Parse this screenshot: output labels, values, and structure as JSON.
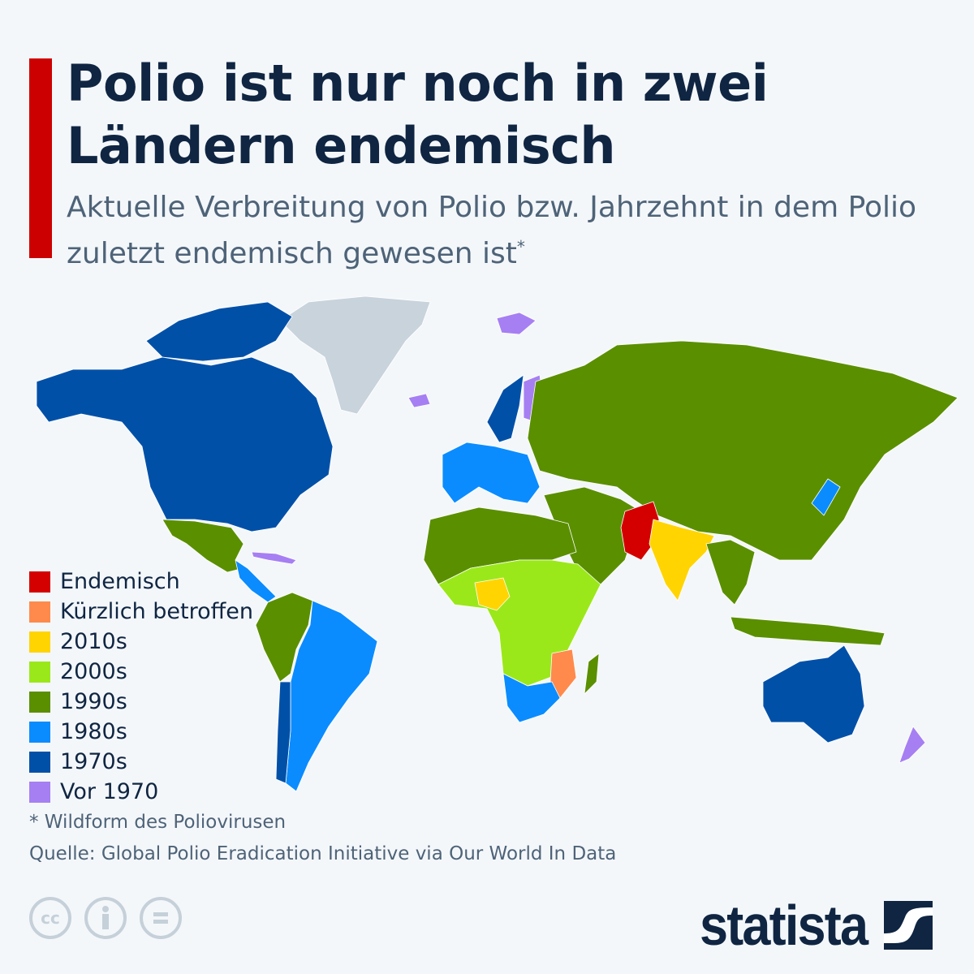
{
  "header": {
    "title": "Polio ist nur noch in zwei Ländern endemisch",
    "subtitle": "Aktuelle Verbreitung von Polio bzw. Jahrzehnt in dem Polio zuletzt endemisch gewesen ist",
    "subtitle_mark": "*",
    "accent_color": "#cc0000"
  },
  "legend": [
    {
      "label": "Endemisch",
      "color": "#d40000"
    },
    {
      "label": "Kürzlich betroffen",
      "color": "#ff8a4c"
    },
    {
      "label": "2010s",
      "color": "#ffd400"
    },
    {
      "label": "2000s",
      "color": "#9be81a"
    },
    {
      "label": "1990s",
      "color": "#5a8f00"
    },
    {
      "label": "1980s",
      "color": "#0a8cff"
    },
    {
      "label": "1970s",
      "color": "#0050a8"
    },
    {
      "label": "Vor 1970",
      "color": "#a67ff2"
    }
  ],
  "map": {
    "no_data_color": "#c8d3dc",
    "regions": {
      "north_america": "1970s",
      "greenland": "none",
      "mexico": "1990s",
      "central_america": "1980s",
      "caribbean": "Vor 1970",
      "andean_south_america": "1990s",
      "south_america": "1980s",
      "chile": "1970s",
      "western_europe": "1980s",
      "scandinavia": "1970s",
      "finland_iceland_svalbard": "Vor 1970",
      "russia_central_asia_china": "1990s",
      "middle_east": "1990s",
      "afghanistan_pakistan": "Endemisch",
      "india": "2010s",
      "nigeria": "2010s",
      "north_africa": "1990s",
      "central_africa": "2000s",
      "mozambique_malawi": "Kürzlich betroffen",
      "southern_africa": "1980s",
      "southeast_asia_indonesia": "1990s",
      "japan": "1980s",
      "australia": "1970s",
      "new_zealand": "Vor 1970"
    }
  },
  "footer": {
    "note": "* Wildform des Poliovirusen",
    "source": "Quelle: Global Polio Eradication Initiative via Our World In Data",
    "license_icons": [
      "cc-icon",
      "attribution-icon",
      "no-derivatives-icon"
    ],
    "cc_label": "cc",
    "logo": "statista"
  }
}
